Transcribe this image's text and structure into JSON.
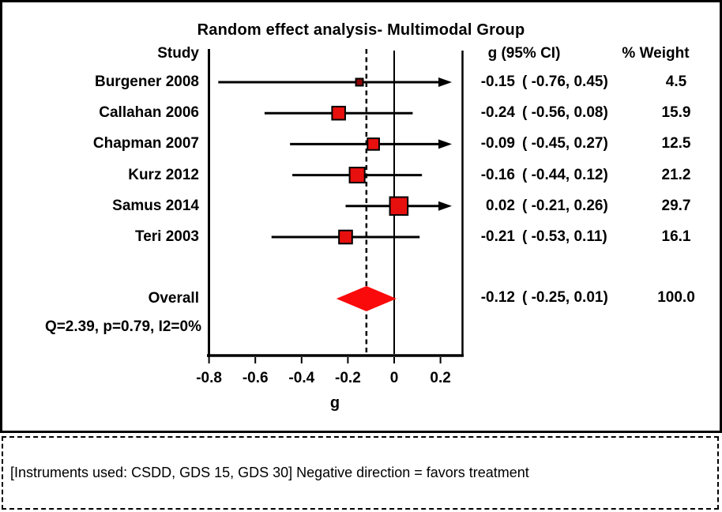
{
  "title": "Random effect analysis- Multimodal Group",
  "columns": {
    "study": "Study",
    "estimate": "g (95% CI)",
    "weight": "% Weight"
  },
  "chart_data": {
    "type": "forest",
    "title": "Random effect analysis- Multimodal Group",
    "xlabel": "g",
    "xlim": [
      -0.8,
      0.29
    ],
    "x_ticks": [
      -0.8,
      -0.6,
      -0.4,
      -0.2,
      0,
      0.2
    ],
    "x_tick_labels": [
      "-0.8",
      "-0.6",
      "-0.4",
      "-0.2",
      "0",
      "0.2"
    ],
    "zero_line": 0,
    "dashed_line_at": -0.12,
    "studies": [
      {
        "label": "Burgener 2008",
        "g": -0.15,
        "lo": -0.76,
        "hi": 0.45,
        "weight": 4.5,
        "g_text": "-0.15",
        "ci_text": "( -0.76, 0.45)",
        "weight_text": "4.5",
        "fill": "#8b0404"
      },
      {
        "label": "Callahan 2006",
        "g": -0.24,
        "lo": -0.56,
        "hi": 0.08,
        "weight": 15.9,
        "g_text": "-0.24",
        "ci_text": "( -0.56, 0.08)",
        "weight_text": "15.9",
        "fill": "#e8100e"
      },
      {
        "label": "Chapman 2007",
        "g": -0.09,
        "lo": -0.45,
        "hi": 0.27,
        "weight": 12.5,
        "g_text": "-0.09",
        "ci_text": "( -0.45, 0.27)",
        "weight_text": "12.5",
        "fill": "#e8100e"
      },
      {
        "label": "Kurz 2012",
        "g": -0.16,
        "lo": -0.44,
        "hi": 0.12,
        "weight": 21.2,
        "g_text": "-0.16",
        "ci_text": "( -0.44, 0.12)",
        "weight_text": "21.2",
        "fill": "#e8100e"
      },
      {
        "label": "Samus 2014",
        "g": 0.02,
        "lo": -0.21,
        "hi": 0.26,
        "weight": 29.7,
        "g_text": "0.02",
        "ci_text": "( -0.21, 0.26)",
        "weight_text": "29.7",
        "fill": "#e8100e"
      },
      {
        "label": "Teri 2003",
        "g": -0.21,
        "lo": -0.53,
        "hi": 0.11,
        "weight": 16.1,
        "g_text": "-0.21",
        "ci_text": "( -0.53, 0.11)",
        "weight_text": "16.1",
        "fill": "#e8100e"
      }
    ],
    "overall": {
      "label": "Overall",
      "g": -0.12,
      "lo": -0.25,
      "hi": 0.01,
      "g_text": "-0.12",
      "ci_text": "( -0.25, 0.01)",
      "weight_text": "100.0"
    },
    "heterogeneity": "Q=2.39, p=0.79, I2=0%",
    "legend_position": "none",
    "grid": false
  },
  "colors": {
    "marker_stroke": "#000000",
    "marker_fill": "#e8100e",
    "marker_fill_small": "#8b0404",
    "diamond_fill": "#fa0a0a",
    "line": "#000000"
  },
  "caption": "[Instruments used: CSDD, GDS 15, GDS 30] Negative direction = favors treatment"
}
